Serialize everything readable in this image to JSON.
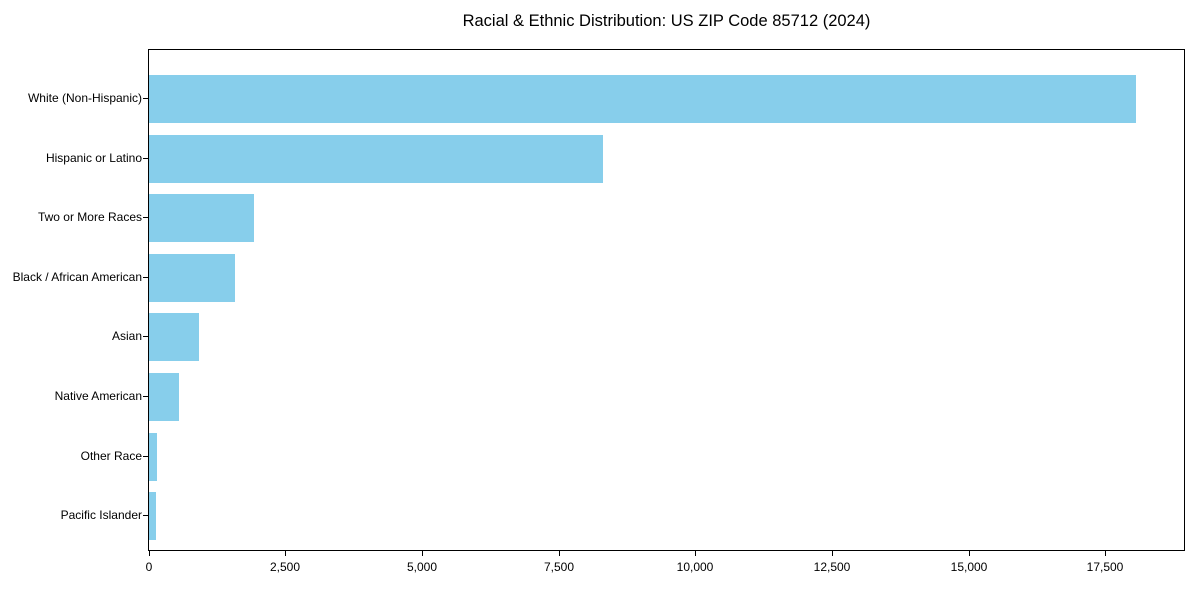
{
  "chart_data": {
    "type": "bar",
    "orientation": "horizontal",
    "title": "Racial & Ethnic Distribution: US ZIP Code 85712 (2024)",
    "categories": [
      "White (Non-Hispanic)",
      "Hispanic or Latino",
      "Two or More Races",
      "Black / African American",
      "Asian",
      "Native American",
      "Other Race",
      "Pacific Islander"
    ],
    "values": [
      18050,
      8310,
      1920,
      1580,
      910,
      545,
      150,
      125
    ],
    "xlabel": "",
    "ylabel": "",
    "xlim": [
      0,
      18950
    ],
    "x_ticks": [
      {
        "value": 0,
        "label": "0"
      },
      {
        "value": 2500,
        "label": "2,500"
      },
      {
        "value": 5000,
        "label": "5,000"
      },
      {
        "value": 7500,
        "label": "7,500"
      },
      {
        "value": 10000,
        "label": "10,000"
      },
      {
        "value": 12500,
        "label": "12,500"
      },
      {
        "value": 15000,
        "label": "15,000"
      },
      {
        "value": 17500,
        "label": "17,500"
      }
    ],
    "grid": false,
    "legend": "none",
    "bar_color": "#87CEEB",
    "text_color": "#000000",
    "spine_color": "#000000",
    "background_color": "#ffffff"
  }
}
